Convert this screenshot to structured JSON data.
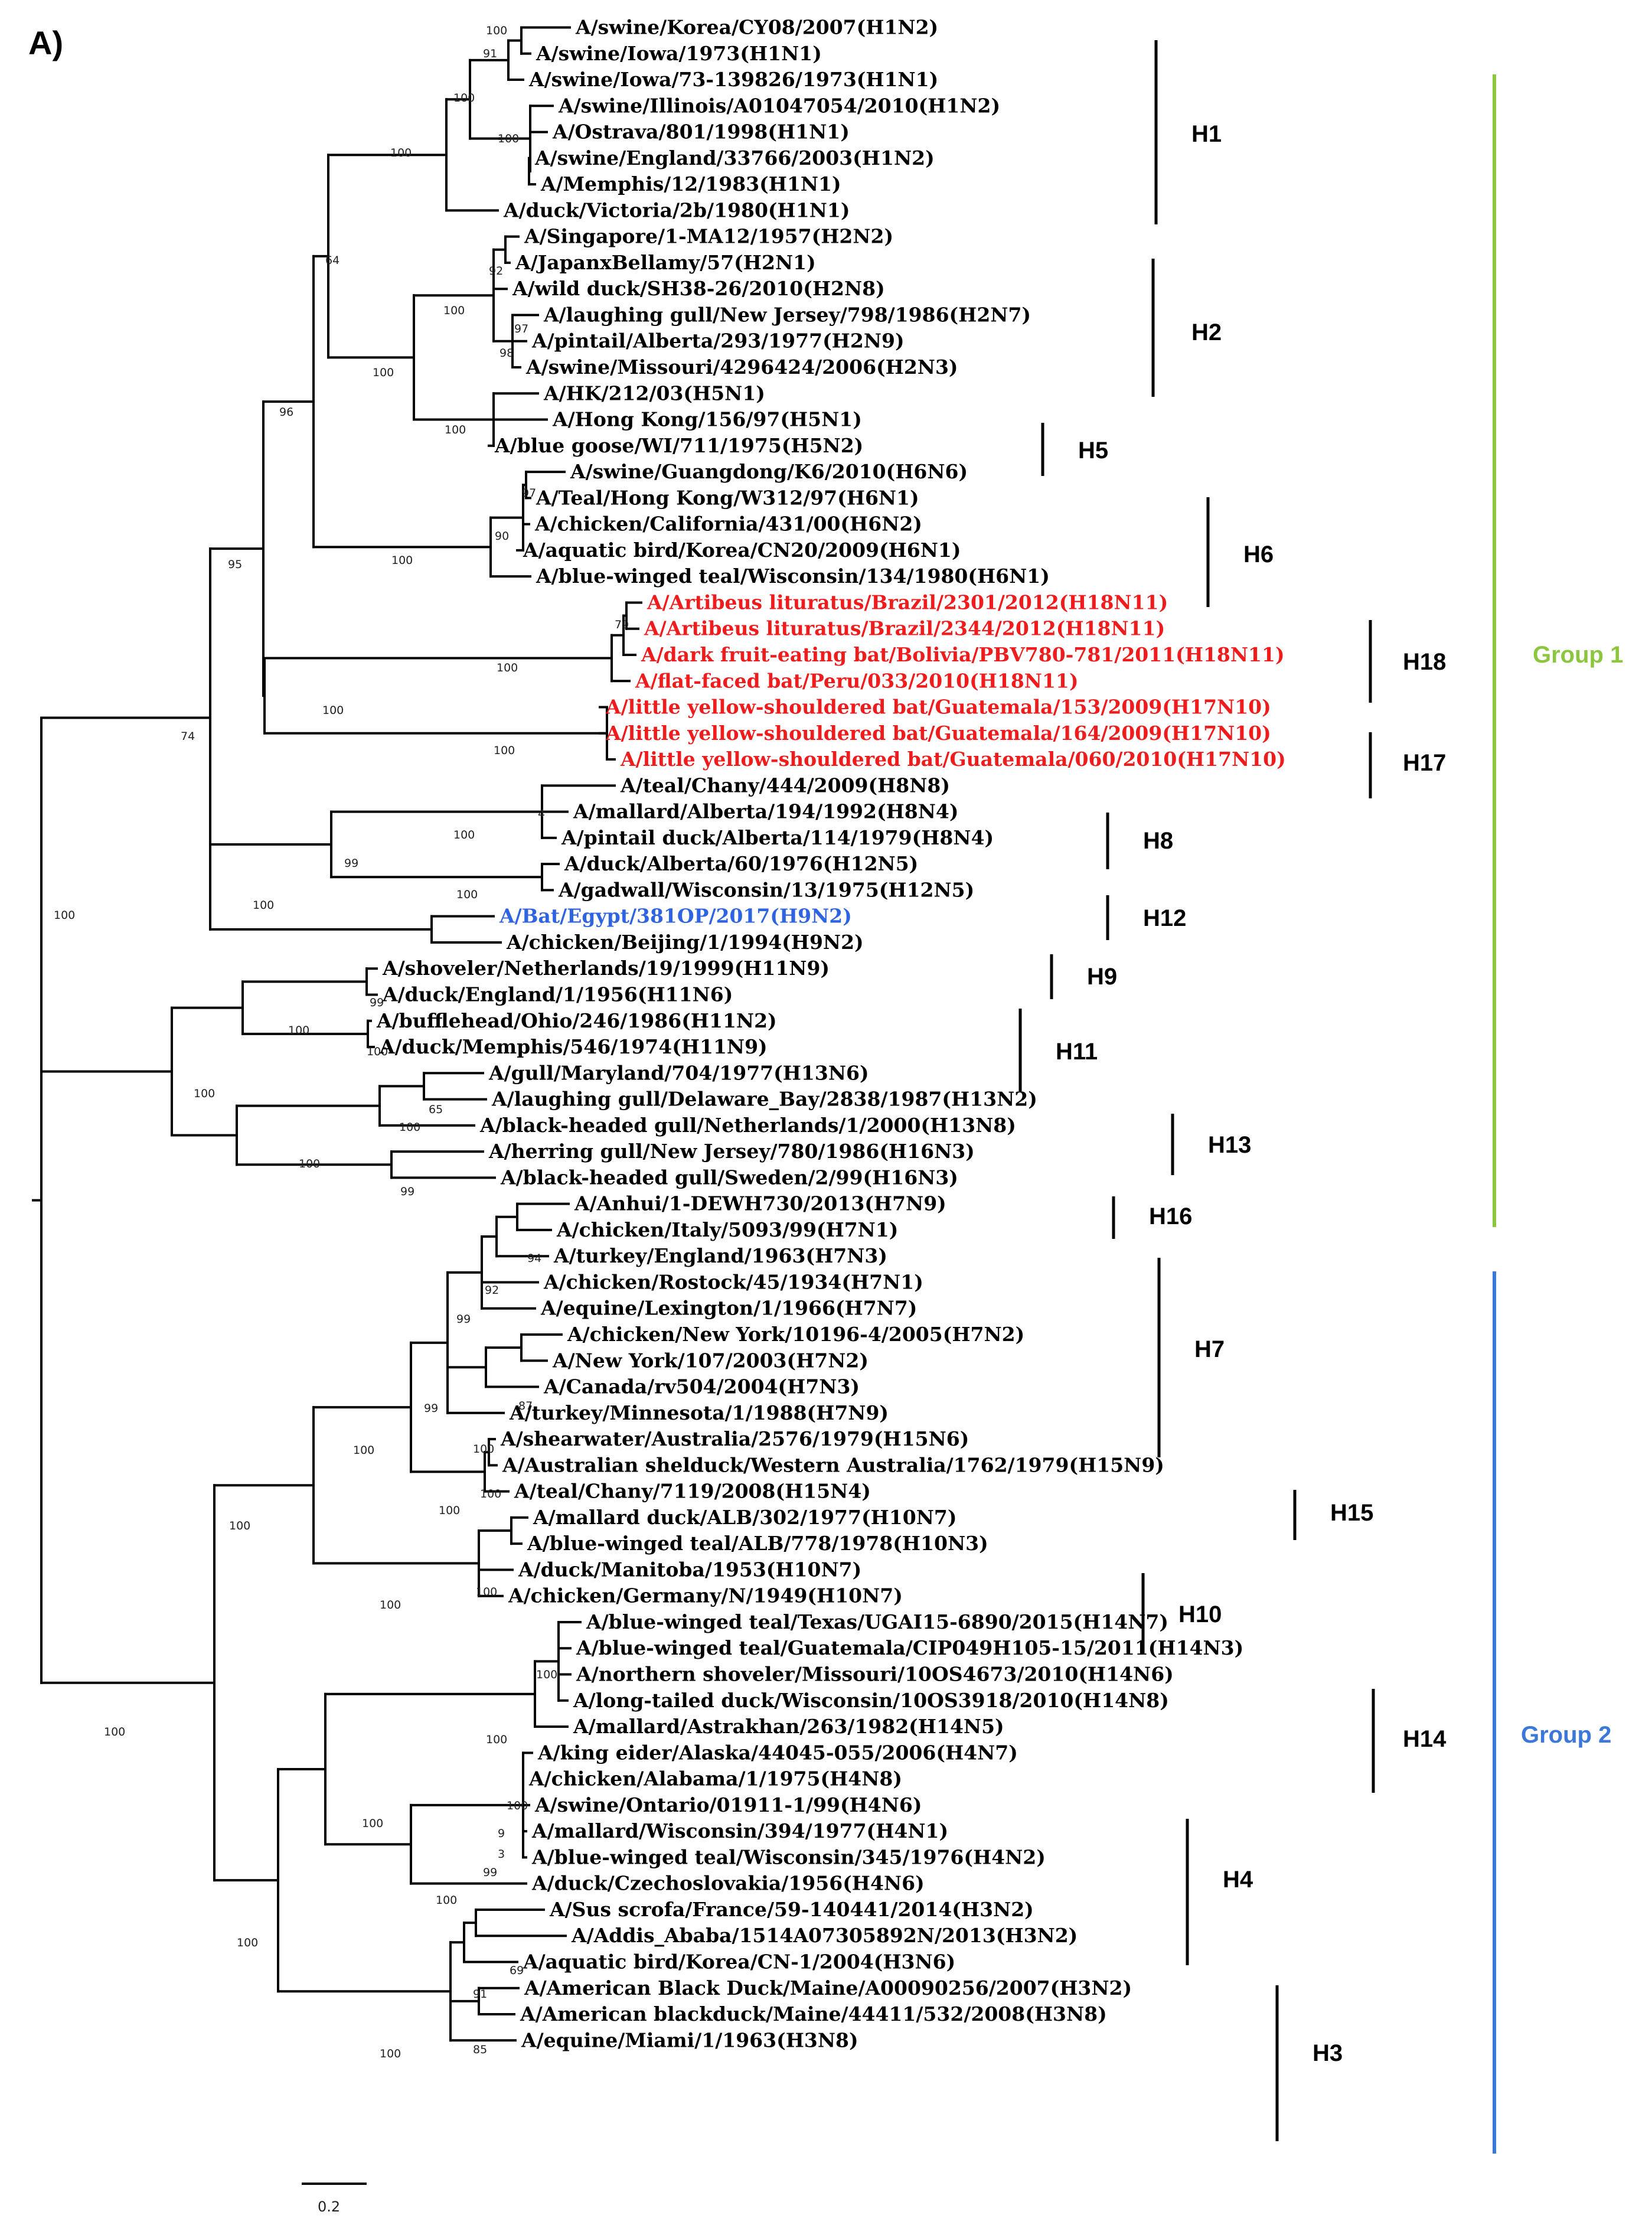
{
  "panel_label": "A)",
  "colors": {
    "branch": "#000000",
    "bat_h17_h18": "#ee1c1c",
    "bat_h9": "#2f64e0",
    "group1": "#8cc63f",
    "group2": "#3b78d8",
    "text": "#000000"
  },
  "scale_bar": {
    "label": "0.2"
  },
  "groups": [
    {
      "label": "Group 1",
      "color": "#8cc63f"
    },
    {
      "label": "Group 2",
      "color": "#3b78d8"
    }
  ],
  "clades": [
    "H1",
    "H2",
    "H5",
    "H6",
    "H18",
    "H17",
    "H8",
    "H12",
    "H9",
    "H11",
    "H13",
    "H16",
    "H7",
    "H15",
    "H10",
    "H14",
    "H4",
    "H3"
  ],
  "taxa": [
    "A/swine/Korea/CY08/2007(H1N2)",
    "A/swine/Iowa/1973(H1N1)",
    "A/swine/Iowa/73-139826/1973(H1N1)",
    "A/swine/Illinois/A01047054/2010(H1N2)",
    "A/Ostrava/801/1998(H1N1)",
    "A/swine/England/33766/2003(H1N2)",
    "A/Memphis/12/1983(H1N1)",
    "A/duck/Victoria/2b/1980(H1N1)",
    "A/Singapore/1-MA12/1957(H2N2)",
    "A/JapanxBellamy/57(H2N1)",
    "A/wild duck/SH38-26/2010(H2N8)",
    "A/laughing gull/New Jersey/798/1986(H2N7)",
    "A/pintail/Alberta/293/1977(H2N9)",
    "A/swine/Missouri/4296424/2006(H2N3)",
    "A/HK/212/03(H5N1)",
    "A/Hong Kong/156/97(H5N1)",
    "A/blue goose/WI/711/1975(H5N2)",
    "A/swine/Guangdong/K6/2010(H6N6)",
    "A/Teal/Hong Kong/W312/97(H6N1)",
    "A/chicken/California/431/00(H6N2)",
    "A/aquatic bird/Korea/CN20/2009(H6N1)",
    "A/blue-winged teal/Wisconsin/134/1980(H6N1)",
    "A/Artibeus lituratus/Brazil/2301/2012(H18N11)",
    "A/Artibeus lituratus/Brazil/2344/2012(H18N11)",
    "A/dark fruit-eating bat/Bolivia/PBV780-781/2011(H18N11)",
    "A/flat-faced bat/Peru/033/2010(H18N11)",
    "A/little yellow-shouldered bat/Guatemala/153/2009(H17N10)",
    "A/little yellow-shouldered bat/Guatemala/164/2009(H17N10)",
    "A/little yellow-shouldered bat/Guatemala/060/2010(H17N10)",
    "A/teal/Chany/444/2009(H8N8)",
    "A/mallard/Alberta/194/1992(H8N4)",
    "A/pintail duck/Alberta/114/1979(H8N4)",
    "A/duck/Alberta/60/1976(H12N5)",
    "A/gadwall/Wisconsin/13/1975(H12N5)",
    "A/Bat/Egypt/381OP/2017(H9N2)",
    "A/chicken/Beijing/1/1994(H9N2)",
    "A/shoveler/Netherlands/19/1999(H11N9)",
    "A/duck/England/1/1956(H11N6)",
    "A/bufflehead/Ohio/246/1986(H11N2)",
    "A/duck/Memphis/546/1974(H11N9)",
    "A/gull/Maryland/704/1977(H13N6)",
    "A/laughing gull/Delaware_Bay/2838/1987(H13N2)",
    "A/black-headed gull/Netherlands/1/2000(H13N8)",
    "A/herring gull/New Jersey/780/1986(H16N3)",
    "A/black-headed gull/Sweden/2/99(H16N3)",
    "A/Anhui/1-DEWH730/2013(H7N9)",
    "A/chicken/Italy/5093/99(H7N1)",
    "A/turkey/England/1963(H7N3)",
    "A/chicken/Rostock/45/1934(H7N1)",
    "A/equine/Lexington/1/1966(H7N7)",
    "A/chicken/New York/10196-4/2005(H7N2)",
    "A/New York/107/2003(H7N2)",
    "A/Canada/rv504/2004(H7N3)",
    "A/turkey/Minnesota/1/1988(H7N9)",
    "A/shearwater/Australia/2576/1979(H15N6)",
    "A/Australian shelduck/Western Australia/1762/1979(H15N9)",
    "A/teal/Chany/7119/2008(H15N4)",
    "A/mallard duck/ALB/302/1977(H10N7)",
    "A/blue-winged teal/ALB/778/1978(H10N3)",
    "A/duck/Manitoba/1953(H10N7)",
    "A/chicken/Germany/N/1949(H10N7)",
    "A/blue-winged teal/Texas/UGAI15-6890/2015(H14N7)",
    "A/blue-winged teal/Guatemala/CIP049H105-15/2011(H14N3)",
    "A/northern shoveler/Missouri/10OS4673/2010(H14N6)",
    "A/long-tailed duck/Wisconsin/10OS3918/2010(H14N8)",
    "A/mallard/Astrakhan/263/1982(H14N5)",
    "A/king eider/Alaska/44045-055/2006(H4N7)",
    "A/chicken/Alabama/1/1975(H4N8)",
    "A/swine/Ontario/01911-1/99(H4N6)",
    "A/mallard/Wisconsin/394/1977(H4N1)",
    "A/blue-winged teal/Wisconsin/345/1976(H4N2)",
    "A/duck/Czechoslovakia/1956(H4N6)",
    "A/Sus scrofa/France/59-140441/2014(H3N2)",
    "A/Addis_Ababa/1514A07305892N/2013(H3N2)",
    "A/aquatic bird/Korea/CN-1/2004(H3N6)",
    "A/American Black Duck/Maine/A00090256/2007(H3N2)",
    "A/American blackduck/Maine/44411/532/2008(H3N8)",
    "A/equine/Miami/1/1963(H3N8)"
  ],
  "taxon_colors": {
    "A/Artibeus lituratus/Brazil/2301/2012(H18N11)": "#ee1c1c",
    "A/Artibeus lituratus/Brazil/2344/2012(H18N11)": "#ee1c1c",
    "A/dark fruit-eating bat/Bolivia/PBV780-781/2011(H18N11)": "#ee1c1c",
    "A/flat-faced bat/Peru/033/2010(H18N11)": "#ee1c1c",
    "A/little yellow-shouldered bat/Guatemala/153/2009(H17N10)": "#ee1c1c",
    "A/little yellow-shouldered bat/Guatemala/164/2009(H17N10)": "#ee1c1c",
    "A/little yellow-shouldered bat/Guatemala/060/2010(H17N10)": "#ee1c1c",
    "A/Bat/Egypt/381OP/2017(H9N2)": "#2f64e0"
  },
  "bootstrap_labels": [
    "100",
    "91",
    "100",
    "100",
    "100",
    "64",
    "92",
    "100",
    "97",
    "98",
    "100",
    "96",
    "100",
    "97",
    "90",
    "100",
    "95",
    "100",
    "79",
    "100",
    "100",
    "74",
    "4",
    "100",
    "99",
    "100",
    "100",
    "100",
    "99",
    "100",
    "100",
    "65",
    "100",
    "100",
    "100",
    "99",
    "94",
    "92",
    "99",
    "99",
    "87",
    "100",
    "100",
    "100",
    "100",
    "100",
    "100",
    "100",
    "100",
    "100",
    "100",
    "100",
    "100",
    "9",
    "3",
    "99",
    "100",
    "100",
    "69",
    "91",
    "85",
    "100"
  ]
}
